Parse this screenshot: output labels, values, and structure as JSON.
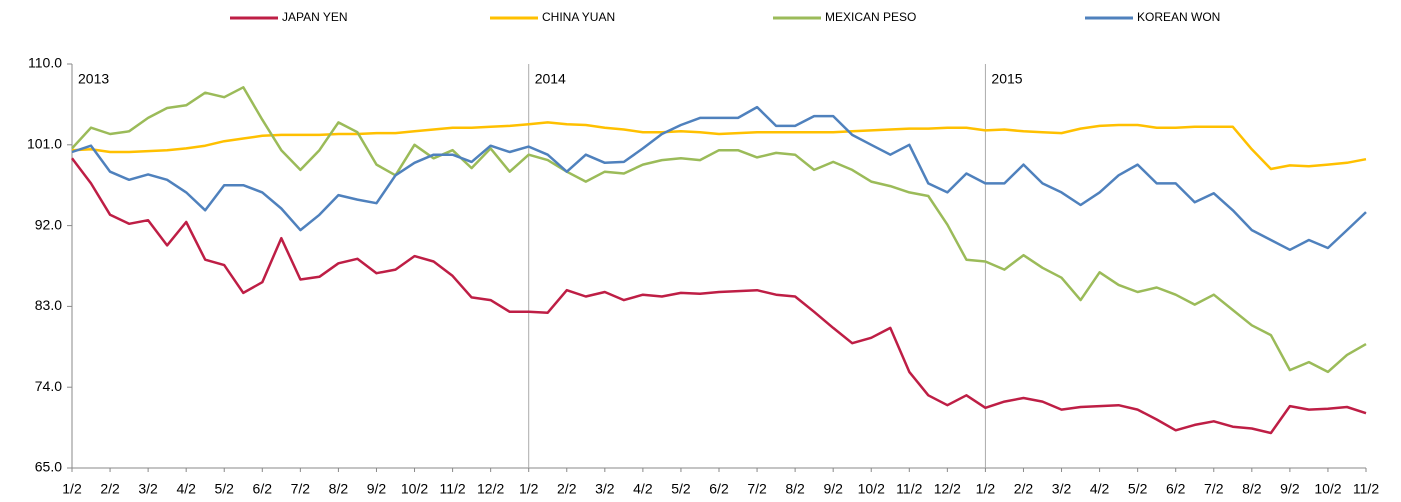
{
  "chart_data": {
    "type": "line",
    "categories": [
      "1/2",
      null,
      "2/2",
      null,
      "3/2",
      null,
      "4/2",
      null,
      "5/2",
      null,
      "6/2",
      null,
      "7/2",
      null,
      "8/2",
      null,
      "9/2",
      null,
      "10/2",
      null,
      "11/2",
      null,
      "12/2",
      null,
      "1/2",
      null,
      "2/2",
      null,
      "3/2",
      null,
      "4/2",
      null,
      "5/2",
      null,
      "6/2",
      null,
      "7/2",
      null,
      "8/2",
      null,
      "9/2",
      null,
      "10/2",
      null,
      "11/2",
      null,
      "12/2",
      null,
      "1/2",
      null,
      "2/2",
      null,
      "3/2",
      null,
      "4/2",
      null,
      "5/2",
      null,
      "6/2",
      null,
      "7/2",
      null,
      "8/2",
      null,
      "9/2",
      null,
      "10/2",
      null,
      "11/2"
    ],
    "series": [
      {
        "name": "JAPAN YEN",
        "color": "#be1e45",
        "values": [
          99.5,
          96.7,
          93.2,
          92.2,
          92.6,
          89.8,
          92.4,
          88.2,
          87.6,
          84.5,
          85.7,
          90.6,
          86.0,
          86.3,
          87.8,
          88.3,
          86.7,
          87.1,
          88.6,
          88.0,
          86.4,
          84.0,
          83.7,
          82.4,
          82.4,
          82.3,
          84.8,
          84.1,
          84.6,
          83.7,
          84.3,
          84.1,
          84.5,
          84.4,
          84.6,
          84.7,
          84.8,
          84.3,
          84.1,
          82.4,
          80.6,
          78.9,
          79.5,
          80.6,
          75.7,
          73.1,
          72.0,
          73.1,
          71.7,
          72.4,
          72.8,
          72.4,
          71.5,
          71.8,
          71.9,
          72.0,
          71.5,
          70.4,
          69.2,
          69.8,
          70.2,
          69.6,
          69.4,
          68.9,
          71.9,
          71.5,
          71.6,
          71.8,
          71.1
        ]
      },
      {
        "name": "CHINA YUAN",
        "color": "#ffc000",
        "values": [
          100.4,
          100.5,
          100.2,
          100.2,
          100.3,
          100.4,
          100.6,
          100.9,
          101.4,
          101.7,
          102.0,
          102.1,
          102.1,
          102.1,
          102.2,
          102.2,
          102.3,
          102.3,
          102.5,
          102.7,
          102.9,
          102.9,
          103.0,
          103.1,
          103.3,
          103.5,
          103.3,
          103.2,
          102.9,
          102.7,
          102.4,
          102.4,
          102.5,
          102.4,
          102.2,
          102.3,
          102.4,
          102.4,
          102.4,
          102.4,
          102.4,
          102.5,
          102.6,
          102.7,
          102.8,
          102.8,
          102.9,
          102.9,
          102.6,
          102.7,
          102.5,
          102.4,
          102.3,
          102.8,
          103.1,
          103.2,
          103.2,
          102.9,
          102.9,
          103.0,
          103.0,
          103.0,
          100.5,
          98.3,
          98.7,
          98.6,
          98.8,
          99.0,
          99.4
        ]
      },
      {
        "name": "MEXICAN PESO",
        "color": "#9bbb59",
        "values": [
          100.6,
          102.9,
          102.2,
          102.5,
          104.0,
          105.1,
          105.4,
          106.8,
          106.3,
          107.4,
          103.8,
          100.4,
          98.2,
          100.4,
          103.5,
          102.4,
          98.8,
          97.6,
          101.0,
          99.5,
          100.4,
          98.4,
          100.6,
          98.0,
          99.9,
          99.3,
          98.0,
          96.9,
          98.0,
          97.8,
          98.8,
          99.3,
          99.5,
          99.3,
          100.4,
          100.4,
          99.6,
          100.1,
          99.9,
          98.2,
          99.1,
          98.2,
          96.9,
          96.4,
          95.7,
          95.3,
          92.1,
          88.2,
          88.0,
          87.1,
          88.7,
          87.3,
          86.2,
          83.7,
          86.8,
          85.4,
          84.6,
          85.1,
          84.3,
          83.2,
          84.3,
          82.6,
          80.9,
          79.8,
          75.9,
          76.8,
          75.7,
          77.6,
          78.8
        ]
      },
      {
        "name": "KOREAN WON",
        "color": "#4f81bd",
        "values": [
          100.2,
          100.9,
          98.0,
          97.1,
          97.7,
          97.1,
          95.7,
          93.7,
          96.5,
          96.5,
          95.7,
          93.9,
          91.5,
          93.2,
          95.4,
          94.9,
          94.5,
          97.6,
          99.0,
          99.9,
          99.9,
          99.1,
          100.9,
          100.2,
          100.8,
          99.9,
          98.0,
          99.9,
          99.0,
          99.1,
          100.6,
          102.2,
          103.2,
          104.0,
          104.0,
          104.0,
          105.2,
          103.1,
          103.1,
          104.2,
          104.2,
          102.1,
          101.0,
          99.9,
          101.0,
          96.7,
          95.7,
          97.8,
          96.7,
          96.7,
          98.8,
          96.7,
          95.7,
          94.3,
          95.7,
          97.6,
          98.8,
          96.7,
          96.7,
          94.6,
          95.6,
          93.7,
          91.5,
          90.4,
          89.3,
          90.4,
          89.5,
          91.5,
          93.5
        ]
      }
    ],
    "annotations": [
      "2013",
      "2014",
      "2015"
    ],
    "ylim": [
      65,
      110
    ],
    "yticks": [
      {
        "value": 65,
        "label": "65.0"
      },
      {
        "value": 74,
        "label": "74.0"
      },
      {
        "value": 83,
        "label": "83.0"
      },
      {
        "value": 92,
        "label": "92.0"
      },
      {
        "value": 101,
        "label": "101.0"
      },
      {
        "value": 110,
        "label": "110.0"
      }
    ],
    "grid": false,
    "legend": "top"
  }
}
